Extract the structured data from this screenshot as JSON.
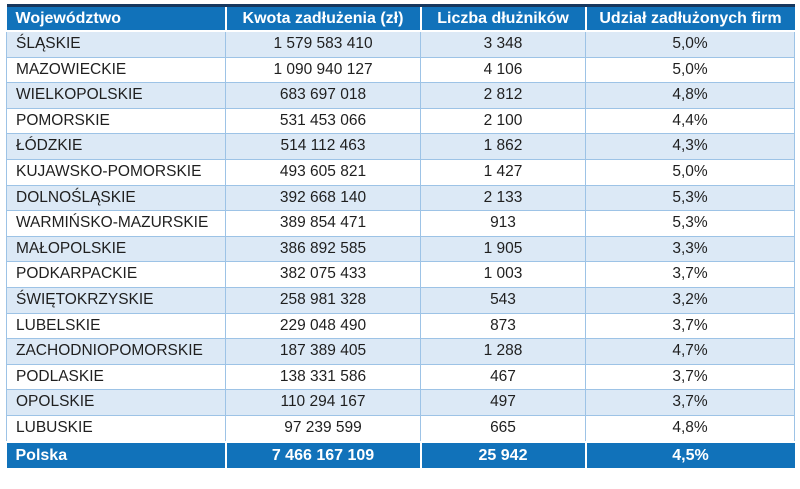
{
  "chart_data": {
    "type": "table",
    "columns": [
      "Województwo",
      "Kwota zadłużenia (zł)",
      "Liczba dłużników",
      "Udział zadłużonych firm"
    ],
    "rows": [
      [
        "ŚLĄSKIE",
        "1 579 583 410",
        "3 348",
        "5,0%"
      ],
      [
        "MAZOWIECKIE",
        "1 090 940 127",
        "4 106",
        "5,0%"
      ],
      [
        "WIELKOPOLSKIE",
        "683 697 018",
        "2 812",
        "4,8%"
      ],
      [
        "POMORSKIE",
        "531 453 066",
        "2 100",
        "4,4%"
      ],
      [
        "ŁÓDZKIE",
        "514 112 463",
        "1 862",
        "4,3%"
      ],
      [
        "KUJAWSKO-POMORSKIE",
        "493 605 821",
        "1 427",
        "5,0%"
      ],
      [
        "DOLNOŚLĄSKIE",
        "392 668 140",
        "2 133",
        "5,3%"
      ],
      [
        "WARMIŃSKO-MAZURSKIE",
        "389 854 471",
        "913",
        "5,3%"
      ],
      [
        "MAŁOPOLSKIE",
        "386 892 585",
        "1 905",
        "3,3%"
      ],
      [
        "PODKARPACKIE",
        "382 075 433",
        "1 003",
        "3,7%"
      ],
      [
        "ŚWIĘTOKRZYSKIE",
        "258 981 328",
        "543",
        "3,2%"
      ],
      [
        "LUBELSKIE",
        "229 048 490",
        "873",
        "3,7%"
      ],
      [
        "ZACHODNIOPOMORSKIE",
        "187 389 405",
        "1 288",
        "4,7%"
      ],
      [
        "PODLASKIE",
        "138 331 586",
        "467",
        "3,7%"
      ],
      [
        "OPOLSKIE",
        "110 294 167",
        "497",
        "3,7%"
      ],
      [
        "LUBUSKIE",
        "97 239 599",
        "665",
        "4,8%"
      ]
    ],
    "footer": [
      "Polska",
      "7 466 167 109",
      "25 942",
      "4,5%"
    ],
    "layout": {
      "alternating_rows": true,
      "first_data_row_shaded": true
    }
  },
  "colors": {
    "header_bg": "#1172BA",
    "footer_bg": "#1172BA",
    "row_alt_bg": "#DCE9F6",
    "row_bg": "#FFFFFF",
    "grid_border": "#9DC3E6",
    "top_border": "#17375D",
    "header_text": "#FFFFFF",
    "body_text": "#1F1F1F"
  }
}
